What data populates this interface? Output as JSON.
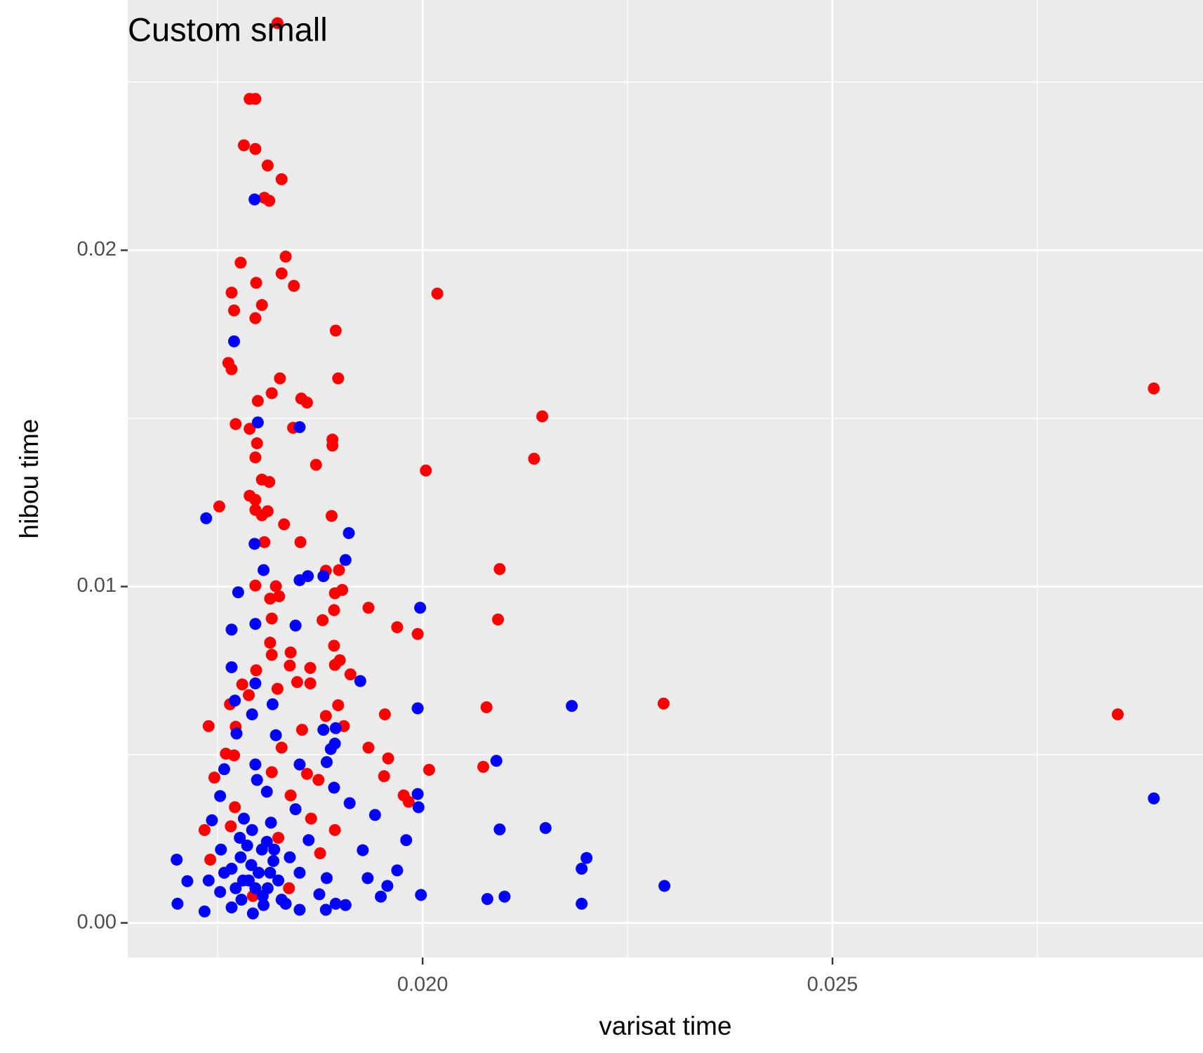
{
  "chart_data": {
    "type": "scatter",
    "title": "Custom small",
    "x_label": "varisat time",
    "y_label": "hibou time",
    "xlim": [
      0.016403,
      0.02952
    ],
    "ylim": [
      -0.00103,
      0.02744
    ],
    "xticks": [
      {
        "value": 0.02,
        "label": "0.020"
      },
      {
        "value": 0.025,
        "label": "0.025"
      }
    ],
    "yticks": [
      {
        "value": 0,
        "label": "0.00"
      },
      0.01,
      0.02
    ],
    "grid": true,
    "minor_grid": true,
    "series": [
      {
        "color": "#ff0000",
        "x": [
          0.01823,
          0.01789,
          0.01796,
          0.01782,
          0.01796,
          0.01811,
          0.01828,
          0.01807,
          0.01813,
          0.01833,
          0.01778,
          0.01828,
          0.01797,
          0.01843,
          0.02018,
          0.01767,
          0.01804,
          0.0177,
          0.01796,
          0.01894,
          0.01763,
          0.01767,
          0.01826,
          0.01897,
          0.02892,
          0.01816,
          0.01799,
          0.01852,
          0.01859,
          0.02146,
          0.01772,
          0.01789,
          0.01842,
          0.0189,
          0.01798,
          0.0189,
          0.01796,
          0.02136,
          0.0187,
          0.02004,
          0.01804,
          0.01813,
          0.01789,
          0.01796,
          0.01752,
          0.01796,
          0.01811,
          0.01804,
          0.01889,
          0.01831,
          0.01807,
          0.01851,
          0.02094,
          0.01882,
          0.01898,
          0.01796,
          0.01821,
          0.01902,
          0.01893,
          0.01814,
          0.01825,
          0.01934,
          0.01892,
          0.01816,
          0.02092,
          0.01878,
          0.01969,
          0.01994,
          0.01814,
          0.01892,
          0.01839,
          0.01816,
          0.01899,
          0.01838,
          0.01863,
          0.01893,
          0.01797,
          0.01912,
          0.01847,
          0.01863,
          0.0178,
          0.01823,
          0.01788,
          0.02294,
          0.02078,
          0.01765,
          0.01897,
          0.01954,
          0.01882,
          0.02848,
          0.01739,
          0.01904,
          0.01772,
          0.01853,
          0.01934,
          0.01828,
          0.0176,
          0.0177,
          0.01958,
          0.02074,
          0.02008,
          0.01953,
          0.01746,
          0.01859,
          0.01816,
          0.01873,
          0.01977,
          0.01839,
          0.01771,
          0.01983,
          0.01864,
          0.01734,
          0.01893,
          0.01766,
          0.01824,
          0.01875,
          0.01741,
          0.01837,
          0.01793
        ],
        "values": [
          0.02675,
          0.0245,
          0.0245,
          0.02312,
          0.02301,
          0.02252,
          0.02211,
          0.02156,
          0.02147,
          0.01981,
          0.01963,
          0.01931,
          0.01903,
          0.01894,
          0.01871,
          0.01874,
          0.01837,
          0.01821,
          0.01798,
          0.01761,
          0.01665,
          0.01646,
          0.01619,
          0.01619,
          0.01589,
          0.01575,
          0.01552,
          0.01559,
          0.01547,
          0.01506,
          0.01483,
          0.01469,
          0.01472,
          0.01437,
          0.01426,
          0.01419,
          0.01384,
          0.0138,
          0.01362,
          0.01345,
          0.01318,
          0.01311,
          0.0127,
          0.01258,
          0.01238,
          0.01228,
          0.01224,
          0.01212,
          0.0121,
          0.01185,
          0.01132,
          0.01132,
          0.01052,
          0.01047,
          0.01049,
          0.01003,
          0.01001,
          0.0099,
          0.0098,
          0.00964,
          0.00971,
          0.00937,
          0.0093,
          0.00905,
          0.00902,
          0.009,
          0.00879,
          0.00859,
          0.00833,
          0.00824,
          0.00804,
          0.00797,
          0.00781,
          0.00765,
          0.00758,
          0.00767,
          0.00751,
          0.00739,
          0.00716,
          0.00712,
          0.00709,
          0.00696,
          0.00677,
          0.00652,
          0.00641,
          0.0065,
          0.00647,
          0.0062,
          0.00615,
          0.0062,
          0.00585,
          0.00585,
          0.00583,
          0.00574,
          0.00521,
          0.00521,
          0.00503,
          0.00498,
          0.00489,
          0.00464,
          0.00455,
          0.00436,
          0.00432,
          0.00443,
          0.00448,
          0.00425,
          0.00379,
          0.00379,
          0.00344,
          0.0036,
          0.0031,
          0.00276,
          0.00276,
          0.00287,
          0.00253,
          0.00207,
          0.00188,
          0.00103,
          0.0008
        ]
      },
      {
        "color": "#0000ff",
        "x": [
          0.01795,
          0.0177,
          0.01799,
          0.0185,
          0.01736,
          0.0191,
          0.01795,
          0.01906,
          0.01806,
          0.0186,
          0.0185,
          0.01879,
          0.01775,
          0.01997,
          0.01796,
          0.01845,
          0.01767,
          0.01767,
          0.01796,
          0.01924,
          0.01771,
          0.01817,
          0.02182,
          0.01994,
          0.01792,
          0.01773,
          0.01821,
          0.01879,
          0.01894,
          0.01888,
          0.01893,
          0.0209,
          0.01796,
          0.01758,
          0.0185,
          0.01883,
          0.01798,
          0.01892,
          0.01994,
          0.02892,
          0.01753,
          0.01911,
          0.0181,
          0.01845,
          0.01995,
          0.01942,
          0.01743,
          0.01782,
          0.01815,
          0.02094,
          0.0215,
          0.01792,
          0.01861,
          0.0198,
          0.01754,
          0.01927,
          0.01804,
          0.01778,
          0.022,
          0.017,
          0.01818,
          0.02194,
          0.01969,
          0.01767,
          0.0185,
          0.01933,
          0.01713,
          0.01739,
          0.01788,
          0.02295,
          0.01883,
          0.01957,
          0.01753,
          0.01811,
          0.01874,
          0.01998,
          0.01949,
          0.02079,
          0.021,
          0.01779,
          0.01828,
          0.01701,
          0.02194,
          0.01894,
          0.01767,
          0.01806,
          0.01734,
          0.01793,
          0.0185,
          0.01882,
          0.01906,
          0.01781,
          0.01791,
          0.018,
          0.0181,
          0.01786,
          0.01772,
          0.01824,
          0.01838,
          0.01758,
          0.01805,
          0.01819,
          0.01796,
          0.01777,
          0.01833,
          0.01814
        ],
        "values": [
          0.02151,
          0.01729,
          0.01488,
          0.01474,
          0.01203,
          0.01159,
          0.01127,
          0.01079,
          0.01049,
          0.01031,
          0.01019,
          0.01031,
          0.00983,
          0.00937,
          0.00889,
          0.00884,
          0.00872,
          0.0076,
          0.00712,
          0.00719,
          0.00661,
          0.0065,
          0.00645,
          0.00638,
          0.0062,
          0.00563,
          0.00558,
          0.00574,
          0.00579,
          0.00517,
          0.00533,
          0.00482,
          0.00471,
          0.00457,
          0.00471,
          0.00478,
          0.00425,
          0.00402,
          0.00383,
          0.0037,
          0.00377,
          0.00356,
          0.0039,
          0.00338,
          0.00344,
          0.00321,
          0.00305,
          0.0031,
          0.00298,
          0.00278,
          0.00282,
          0.00276,
          0.00246,
          0.00246,
          0.00218,
          0.00216,
          0.00218,
          0.00195,
          0.00193,
          0.00188,
          0.00184,
          0.00161,
          0.00156,
          0.00161,
          0.00149,
          0.00133,
          0.00124,
          0.00126,
          0.00126,
          0.0011,
          0.00133,
          0.0011,
          0.00092,
          0.00103,
          0.00085,
          0.00083,
          0.00078,
          0.00071,
          0.00078,
          0.00069,
          0.00069,
          0.00057,
          0.00057,
          0.00057,
          0.00046,
          0.00053,
          0.00034,
          0.00028,
          0.00039,
          0.00039,
          0.00053,
          0.00126,
          0.00172,
          0.00149,
          0.00241,
          0.0023,
          0.00103,
          0.00126,
          0.00195,
          0.00149,
          0.0008,
          0.00218,
          0.00103,
          0.00253,
          0.00057,
          0.00149
        ]
      }
    ]
  }
}
